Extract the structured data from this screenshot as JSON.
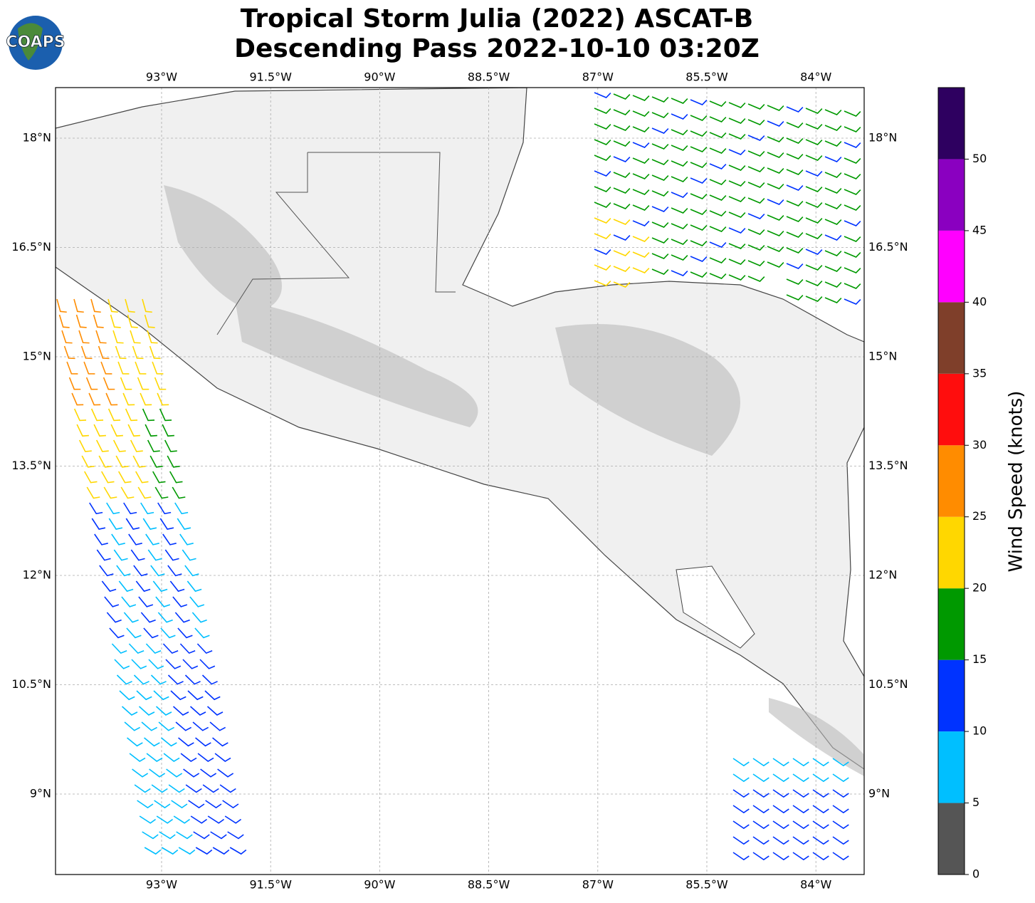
{
  "title": [
    "Tropical Storm Julia (2022) ASCAT-B",
    "Descending Pass 2022-10-10 03:20Z"
  ],
  "logo": "COAPS",
  "map": {
    "lon_ticks": [
      "93°W",
      "91.5°W",
      "90°W",
      "88.5°W",
      "87°W",
      "85.5°W",
      "84°W"
    ],
    "lat_ticks": [
      "18°N",
      "16.5°N",
      "15°N",
      "13.5°N",
      "12°N",
      "10.5°N",
      "9°N"
    ]
  },
  "colorbar": {
    "label": "Wind Speed (knots)",
    "ticks": [
      "0",
      "5",
      "10",
      "15",
      "20",
      "25",
      "30",
      "35",
      "40",
      "45",
      "50"
    ],
    "colors": [
      "#555555",
      "#00bfff",
      "#0033ff",
      "#009900",
      "#ffd700",
      "#ff8c00",
      "#ff0d0d",
      "#7f3f2a",
      "#ff00ff",
      "#8a00c0",
      "#2e0060"
    ]
  }
}
